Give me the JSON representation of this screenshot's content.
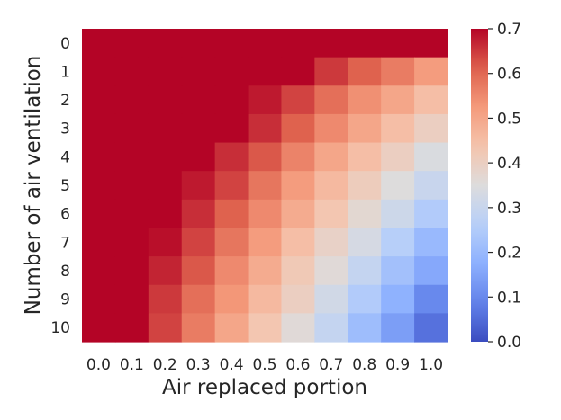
{
  "chart_data": {
    "type": "heatmap",
    "title": "",
    "xlabel": "Air replaced portion",
    "ylabel": "Number of air ventilation",
    "x_categories": [
      "0.0",
      "0.1",
      "0.2",
      "0.3",
      "0.4",
      "0.5",
      "0.6",
      "0.7",
      "0.8",
      "0.9",
      "1.0"
    ],
    "y_categories": [
      "0",
      "1",
      "2",
      "3",
      "4",
      "5",
      "6",
      "7",
      "8",
      "9",
      "10"
    ],
    "values": [
      [
        0.7,
        0.7,
        0.7,
        0.7,
        0.7,
        0.7,
        0.7,
        0.7,
        0.7,
        0.7,
        0.7
      ],
      [
        0.7,
        0.7,
        0.7,
        0.7,
        0.7,
        0.7,
        0.7,
        0.65,
        0.61,
        0.57,
        0.52
      ],
      [
        0.7,
        0.7,
        0.7,
        0.7,
        0.7,
        0.68,
        0.64,
        0.59,
        0.54,
        0.5,
        0.45
      ],
      [
        0.7,
        0.7,
        0.7,
        0.7,
        0.7,
        0.66,
        0.61,
        0.55,
        0.5,
        0.45,
        0.4
      ],
      [
        0.7,
        0.7,
        0.7,
        0.7,
        0.66,
        0.62,
        0.56,
        0.5,
        0.45,
        0.4,
        0.34
      ],
      [
        0.7,
        0.7,
        0.7,
        0.68,
        0.64,
        0.58,
        0.52,
        0.46,
        0.41,
        0.35,
        0.3
      ],
      [
        0.7,
        0.7,
        0.7,
        0.66,
        0.61,
        0.55,
        0.49,
        0.43,
        0.37,
        0.31,
        0.25
      ],
      [
        0.7,
        0.7,
        0.69,
        0.64,
        0.58,
        0.52,
        0.45,
        0.39,
        0.33,
        0.26,
        0.2
      ],
      [
        0.7,
        0.7,
        0.67,
        0.62,
        0.55,
        0.49,
        0.42,
        0.36,
        0.29,
        0.22,
        0.16
      ],
      [
        0.7,
        0.7,
        0.65,
        0.59,
        0.53,
        0.46,
        0.4,
        0.32,
        0.25,
        0.18,
        0.1
      ],
      [
        0.7,
        0.7,
        0.64,
        0.57,
        0.5,
        0.43,
        0.36,
        0.29,
        0.21,
        0.14,
        0.06
      ]
    ],
    "colormap": "coolwarm",
    "colorbar": {
      "vmin": 0.0,
      "vmax": 0.7,
      "ticks": [
        "0.0",
        "0.1",
        "0.2",
        "0.3",
        "0.4",
        "0.5",
        "0.6",
        "0.7"
      ]
    },
    "grid": false
  }
}
